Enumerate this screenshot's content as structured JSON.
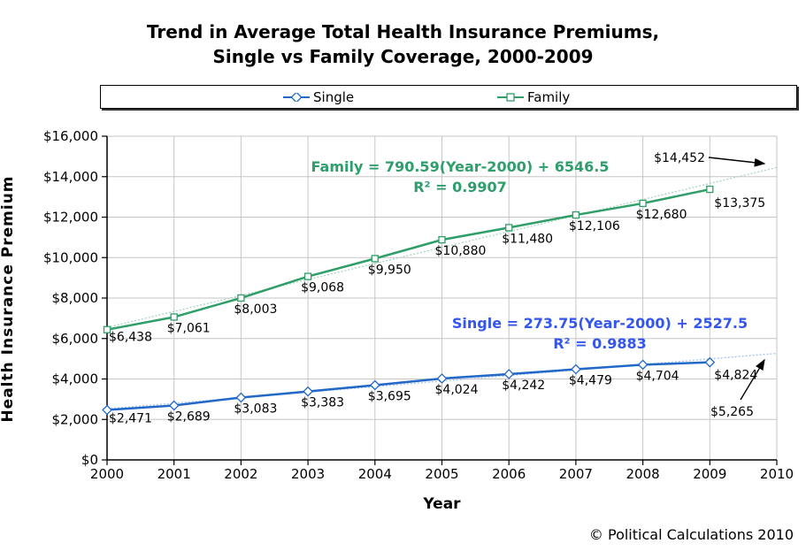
{
  "title": {
    "line1": "Trend in Average Total Health Insurance Premiums,",
    "line2": "Single vs Family Coverage, 2000-2009"
  },
  "legend": {
    "items": [
      {
        "label": "Single",
        "marker": "diamond",
        "color": "#2268c8"
      },
      {
        "label": "Family",
        "marker": "square",
        "color": "#2f9e68"
      }
    ]
  },
  "footer": {
    "copyright": "© Political Calculations 2010"
  },
  "chart_data": {
    "type": "line",
    "title": "Trend in Average Total Health Insurance Premiums, Single vs Family Coverage, 2000-2009",
    "xlabel": "Year",
    "ylabel": "Health Insurance Premium",
    "xlim": [
      2000,
      2010
    ],
    "ylim": [
      0,
      16000
    ],
    "grid": true,
    "legend_position": "top",
    "x": [
      2000,
      2001,
      2002,
      2003,
      2004,
      2005,
      2006,
      2007,
      2008,
      2009
    ],
    "xtick_labels": [
      "2000",
      "2001",
      "2002",
      "2003",
      "2004",
      "2005",
      "2006",
      "2007",
      "2008",
      "2009",
      "2010"
    ],
    "ytick_values": [
      0,
      2000,
      4000,
      6000,
      8000,
      10000,
      12000,
      14000,
      16000
    ],
    "ytick_labels": [
      "$0",
      "$2,000",
      "$4,000",
      "$6,000",
      "$8,000",
      "$10,000",
      "$12,000",
      "$14,000",
      "$16,000"
    ],
    "series": [
      {
        "name": "Single",
        "color": "#2268c8",
        "marker": "diamond",
        "values": [
          2471,
          2689,
          3083,
          3383,
          3695,
          4024,
          4242,
          4479,
          4704,
          4824
        ],
        "labels": [
          "$2,471",
          "$2,689",
          "$3,083",
          "$3,383",
          "$3,695",
          "$4,024",
          "$4,242",
          "$4,479",
          "$4,704",
          "$4,824"
        ],
        "trendline": {
          "slope": 273.75,
          "intercept": 2527.5,
          "extends_to": 2010,
          "color": "#a9c6ec",
          "equation": "Single = 273.75(Year-2000) + 2527.5",
          "r2": "R² = 0.9883",
          "text_color": "#3355f0"
        }
      },
      {
        "name": "Family",
        "color": "#2f9e68",
        "marker": "square",
        "values": [
          6438,
          7061,
          8003,
          9068,
          9950,
          10880,
          11480,
          12106,
          12680,
          13375
        ],
        "labels": [
          "$6,438",
          "$7,061",
          "$8,003",
          "$9,068",
          "$9,950",
          "$10,880",
          "$11,480",
          "$12,106",
          "$12,680",
          "$13,375"
        ],
        "trendline": {
          "slope": 790.59,
          "intercept": 6546.5,
          "extends_to": 2010,
          "color": "#aed7c1",
          "equation": "Family = 790.59(Year-2000) + 6546.5",
          "r2": "R² = 0.9907",
          "text_color": "#2e9e6b"
        }
      }
    ],
    "annotations": [
      {
        "text": "$14,452",
        "points_to_series": "Family",
        "points_to_year": 2010
      },
      {
        "text": "$5,265",
        "points_to_series": "Single",
        "points_to_year": 2010
      }
    ]
  }
}
